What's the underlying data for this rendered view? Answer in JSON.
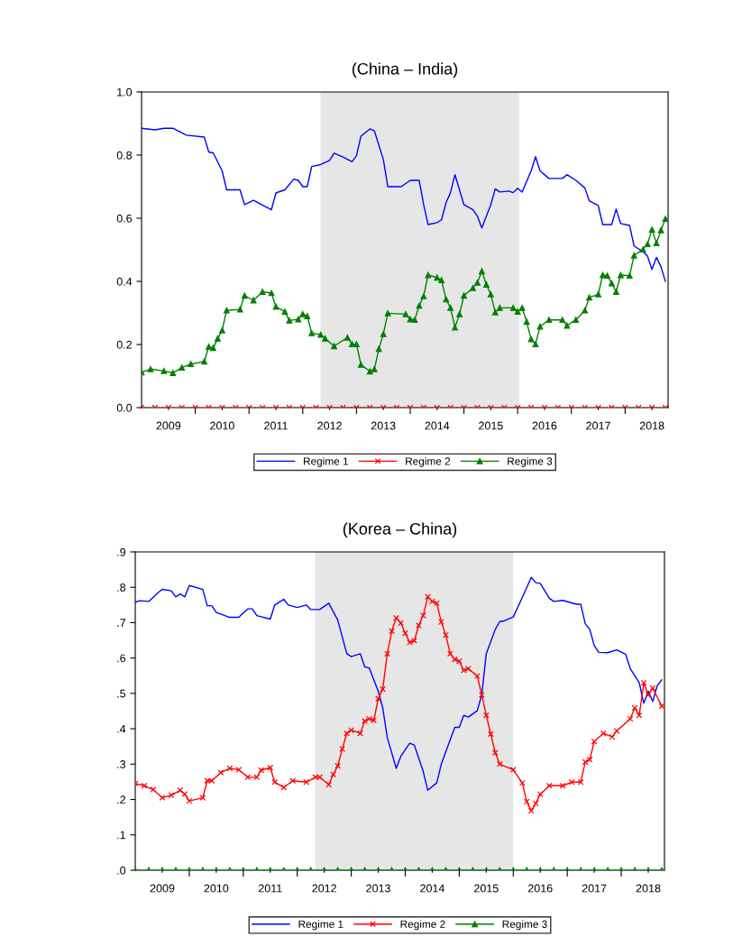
{
  "chart_data": [
    {
      "type": "line",
      "title": "(China – India)",
      "xlim": [
        2009.0,
        2018.8
      ],
      "ylim": [
        0,
        1.0
      ],
      "yticks": [
        {
          "value": 0,
          "label": "0.0"
        },
        {
          "value": 0.2,
          "label": "0.2"
        },
        {
          "value": 0.4,
          "label": "0.4"
        },
        {
          "value": 0.6,
          "label": "0.6"
        },
        {
          "value": 0.8,
          "label": "0.8"
        },
        {
          "value": 1.0,
          "label": "1.0"
        }
      ],
      "xticks": [
        {
          "value": 2009.5,
          "label": "2009"
        },
        {
          "value": 2010,
          "label": null
        },
        {
          "value": 2010.5,
          "label": "2010"
        },
        {
          "value": 2011,
          "label": null
        },
        {
          "value": 2011.5,
          "label": "2011"
        },
        {
          "value": 2012,
          "label": null
        },
        {
          "value": 2012.5,
          "label": "2012"
        },
        {
          "value": 2013,
          "label": null
        },
        {
          "value": 2013.5,
          "label": "2013"
        },
        {
          "value": 2014,
          "label": null
        },
        {
          "value": 2014.5,
          "label": "2014"
        },
        {
          "value": 2015,
          "label": null
        },
        {
          "value": 2015.5,
          "label": "2015"
        },
        {
          "value": 2016,
          "label": null
        },
        {
          "value": 2016.5,
          "label": "2016"
        },
        {
          "value": 2017,
          "label": null
        },
        {
          "value": 2017.5,
          "label": "2017"
        },
        {
          "value": 2018,
          "label": null
        },
        {
          "value": 2018.5,
          "label": "2018"
        }
      ],
      "bands": [
        {
          "axis": "x",
          "from": 2012.33,
          "to": 2016.03,
          "label": null,
          "color": "#e6e6e6"
        }
      ],
      "grid": false,
      "legend": "bottom",
      "series": [
        {
          "name": "Regime 1",
          "color": "#0000ff",
          "marker": "none",
          "line_style": "solid",
          "x": [
            2009.0,
            2009.25,
            2009.417,
            2009.583,
            2009.833,
            2010.167,
            2010.25,
            2010.333,
            2010.5,
            2010.583,
            2010.833,
            2010.917,
            2011.083,
            2011.417,
            2011.5,
            2011.667,
            2011.833,
            2011.917,
            2012.0,
            2012.083,
            2012.167,
            2012.333,
            2012.5,
            2012.583,
            2012.75,
            2012.917,
            2013.0,
            2013.083,
            2013.25,
            2013.333,
            2013.5,
            2013.583,
            2013.833,
            2014.0,
            2014.167,
            2014.25,
            2014.333,
            2014.5,
            2014.583,
            2014.667,
            2014.75,
            2014.833,
            2015.0,
            2015.167,
            2015.25,
            2015.333,
            2015.5,
            2015.583,
            2015.667,
            2015.833,
            2015.917,
            2016.0,
            2016.083,
            2016.25,
            2016.333,
            2016.417,
            2016.583,
            2016.833,
            2016.917,
            2017.083,
            2017.25,
            2017.333,
            2017.5,
            2017.583,
            2017.75,
            2017.833,
            2017.917,
            2018.083,
            2018.167,
            2018.333,
            2018.417,
            2018.5,
            2018.583,
            2018.667,
            2018.75
          ],
          "values": [
            0.885,
            0.88,
            0.885,
            0.885,
            0.863,
            0.857,
            0.81,
            0.807,
            0.75,
            0.69,
            0.69,
            0.643,
            0.657,
            0.627,
            0.68,
            0.69,
            0.724,
            0.72,
            0.7,
            0.7,
            0.764,
            0.77,
            0.783,
            0.806,
            0.794,
            0.779,
            0.798,
            0.86,
            0.883,
            0.877,
            0.786,
            0.7,
            0.7,
            0.72,
            0.72,
            0.643,
            0.58,
            0.586,
            0.595,
            0.649,
            0.681,
            0.738,
            0.643,
            0.627,
            0.607,
            0.569,
            0.643,
            0.693,
            0.683,
            0.686,
            0.681,
            0.695,
            0.683,
            0.75,
            0.795,
            0.75,
            0.726,
            0.726,
            0.738,
            0.72,
            0.696,
            0.655,
            0.64,
            0.58,
            0.58,
            0.629,
            0.583,
            0.577,
            0.512,
            0.494,
            0.48,
            0.438,
            0.476,
            0.446,
            0.4
          ]
        },
        {
          "name": "Regime 2",
          "color": "#ff0000",
          "marker": "cross",
          "line_style": "dotted",
          "x": [
            2009.0,
            2009.25,
            2009.5,
            2009.75,
            2010.0,
            2010.25,
            2010.5,
            2010.75,
            2011.0,
            2011.25,
            2011.5,
            2011.75,
            2012.0,
            2012.25,
            2012.5,
            2012.75,
            2013.0,
            2013.25,
            2013.5,
            2013.75,
            2014.0,
            2014.25,
            2014.5,
            2014.75,
            2015.0,
            2015.25,
            2015.5,
            2015.75,
            2016.0,
            2016.25,
            2016.5,
            2016.75,
            2017.0,
            2017.25,
            2017.5,
            2017.75,
            2018.0,
            2018.25,
            2018.5,
            2018.75
          ],
          "values": [
            0,
            0,
            0,
            0,
            0,
            0,
            0,
            0,
            0,
            0,
            0,
            0,
            0,
            0,
            0,
            0,
            0,
            0,
            0,
            0,
            0,
            0,
            0,
            0,
            0,
            0,
            0,
            0,
            0,
            0,
            0,
            0,
            0,
            0,
            0,
            0,
            0,
            0,
            0,
            0
          ]
        },
        {
          "name": "Regime 3",
          "color": "#008000",
          "marker": "triangle",
          "line_style": "solid",
          "x": [
            2009.0,
            2009.167,
            2009.417,
            2009.583,
            2009.75,
            2009.917,
            2010.167,
            2010.25,
            2010.333,
            2010.417,
            2010.5,
            2010.583,
            2010.833,
            2010.917,
            2011.083,
            2011.25,
            2011.417,
            2011.5,
            2011.667,
            2011.75,
            2011.917,
            2012.0,
            2012.083,
            2012.167,
            2012.333,
            2012.417,
            2012.583,
            2012.833,
            2012.917,
            2013.0,
            2013.083,
            2013.25,
            2013.333,
            2013.417,
            2013.5,
            2013.583,
            2013.917,
            2014.0,
            2014.083,
            2014.167,
            2014.25,
            2014.333,
            2014.5,
            2014.583,
            2014.667,
            2014.75,
            2014.833,
            2014.917,
            2015.0,
            2015.167,
            2015.25,
            2015.333,
            2015.417,
            2015.5,
            2015.583,
            2015.667,
            2015.917,
            2016.0,
            2016.083,
            2016.167,
            2016.25,
            2016.333,
            2016.417,
            2016.583,
            2016.833,
            2016.917,
            2017.083,
            2017.25,
            2017.333,
            2017.5,
            2017.583,
            2017.667,
            2017.75,
            2017.833,
            2017.917,
            2018.083,
            2018.167,
            2018.333,
            2018.417,
            2018.5,
            2018.583,
            2018.667,
            2018.75
          ],
          "values": [
            0.112,
            0.122,
            0.116,
            0.11,
            0.127,
            0.138,
            0.146,
            0.193,
            0.189,
            0.219,
            0.245,
            0.308,
            0.311,
            0.355,
            0.34,
            0.367,
            0.363,
            0.32,
            0.304,
            0.276,
            0.28,
            0.296,
            0.29,
            0.236,
            0.231,
            0.219,
            0.195,
            0.222,
            0.201,
            0.201,
            0.136,
            0.115,
            0.122,
            0.186,
            0.233,
            0.299,
            0.296,
            0.28,
            0.278,
            0.323,
            0.353,
            0.42,
            0.412,
            0.404,
            0.343,
            0.316,
            0.254,
            0.296,
            0.355,
            0.379,
            0.396,
            0.432,
            0.39,
            0.359,
            0.302,
            0.316,
            0.316,
            0.304,
            0.316,
            0.272,
            0.217,
            0.201,
            0.257,
            0.278,
            0.278,
            0.26,
            0.278,
            0.308,
            0.349,
            0.359,
            0.42,
            0.418,
            0.394,
            0.367,
            0.42,
            0.418,
            0.482,
            0.501,
            0.518,
            0.564,
            0.521,
            0.562,
            0.598
          ]
        }
      ]
    },
    {
      "type": "line",
      "title": "(Korea – China)",
      "xlim": [
        2009.0,
        2018.8
      ],
      "ylim": [
        0,
        0.9
      ],
      "yticks": [
        {
          "value": 0,
          "label": ".0"
        },
        {
          "value": 0.1,
          "label": ".1"
        },
        {
          "value": 0.2,
          "label": ".2"
        },
        {
          "value": 0.3,
          "label": ".3"
        },
        {
          "value": 0.4,
          "label": ".4"
        },
        {
          "value": 0.5,
          "label": ".5"
        },
        {
          "value": 0.6,
          "label": ".6"
        },
        {
          "value": 0.7,
          "label": ".7"
        },
        {
          "value": 0.8,
          "label": ".8"
        },
        {
          "value": 0.9,
          "label": ".9"
        }
      ],
      "xticks": [
        {
          "value": 2009.5,
          "label": "2009"
        },
        {
          "value": 2010,
          "label": null
        },
        {
          "value": 2010.5,
          "label": "2010"
        },
        {
          "value": 2011,
          "label": null
        },
        {
          "value": 2011.5,
          "label": "2011"
        },
        {
          "value": 2012,
          "label": null
        },
        {
          "value": 2012.5,
          "label": "2012"
        },
        {
          "value": 2013,
          "label": null
        },
        {
          "value": 2013.5,
          "label": "2013"
        },
        {
          "value": 2014,
          "label": null
        },
        {
          "value": 2014.5,
          "label": "2014"
        },
        {
          "value": 2015,
          "label": null
        },
        {
          "value": 2015.5,
          "label": "2015"
        },
        {
          "value": 2016,
          "label": null
        },
        {
          "value": 2016.5,
          "label": "2016"
        },
        {
          "value": 2017,
          "label": null
        },
        {
          "value": 2017.5,
          "label": "2017"
        },
        {
          "value": 2018,
          "label": null
        },
        {
          "value": 2018.5,
          "label": "2018"
        }
      ],
      "bands": [
        {
          "axis": "x",
          "from": 2012.33,
          "to": 2016.0,
          "label": null,
          "color": "#e6e6e6"
        }
      ],
      "grid": false,
      "legend": "bottom",
      "series": [
        {
          "name": "Regime 1",
          "color": "#0000ff",
          "marker": "none",
          "line_style": "solid",
          "x": [
            2009.0,
            2009.083,
            2009.25,
            2009.417,
            2009.5,
            2009.667,
            2009.75,
            2009.833,
            2009.917,
            2010.0,
            2010.25,
            2010.333,
            2010.417,
            2010.5,
            2010.75,
            2010.917,
            2011.083,
            2011.167,
            2011.25,
            2011.5,
            2011.583,
            2011.75,
            2011.833,
            2012.0,
            2012.167,
            2012.25,
            2012.417,
            2012.583,
            2012.75,
            2012.917,
            2013.0,
            2013.167,
            2013.25,
            2013.333,
            2013.5,
            2013.583,
            2013.667,
            2013.833,
            2013.917,
            2014.083,
            2014.167,
            2014.333,
            2014.417,
            2014.583,
            2014.667,
            2014.917,
            2015.0,
            2015.083,
            2015.167,
            2015.333,
            2015.417,
            2015.5,
            2015.667,
            2015.75,
            2015.833,
            2016.0,
            2016.167,
            2016.333,
            2016.417,
            2016.5,
            2016.667,
            2016.75,
            2016.917,
            2017.167,
            2017.25,
            2017.333,
            2017.417,
            2017.5,
            2017.583,
            2017.75,
            2017.917,
            2018.083,
            2018.167,
            2018.333,
            2018.417,
            2018.5,
            2018.583,
            2018.667,
            2018.75
          ],
          "values": [
            0.758,
            0.762,
            0.76,
            0.784,
            0.794,
            0.79,
            0.773,
            0.781,
            0.773,
            0.805,
            0.794,
            0.748,
            0.748,
            0.729,
            0.715,
            0.715,
            0.739,
            0.739,
            0.72,
            0.71,
            0.75,
            0.766,
            0.75,
            0.743,
            0.75,
            0.737,
            0.737,
            0.755,
            0.707,
            0.612,
            0.604,
            0.612,
            0.575,
            0.572,
            0.506,
            0.459,
            0.375,
            0.288,
            0.322,
            0.359,
            0.354,
            0.279,
            0.226,
            0.247,
            0.3,
            0.404,
            0.404,
            0.438,
            0.433,
            0.451,
            0.496,
            0.612,
            0.681,
            0.703,
            0.705,
            0.716,
            0.771,
            0.828,
            0.813,
            0.811,
            0.769,
            0.76,
            0.763,
            0.752,
            0.752,
            0.697,
            0.681,
            0.635,
            0.616,
            0.615,
            0.623,
            0.61,
            0.57,
            0.53,
            0.472,
            0.506,
            0.477,
            0.522,
            0.538
          ]
        },
        {
          "name": "Regime 2",
          "color": "#ff0000",
          "marker": "cross",
          "line_style": "solid",
          "x": [
            2009.0,
            2009.167,
            2009.333,
            2009.5,
            2009.667,
            2009.833,
            2009.917,
            2010.0,
            2010.25,
            2010.333,
            2010.417,
            2010.583,
            2010.75,
            2010.917,
            2011.083,
            2011.25,
            2011.333,
            2011.5,
            2011.583,
            2011.75,
            2011.917,
            2012.167,
            2012.333,
            2012.417,
            2012.583,
            2012.667,
            2012.75,
            2012.833,
            2012.917,
            2013.0,
            2013.167,
            2013.25,
            2013.333,
            2013.417,
            2013.5,
            2013.583,
            2013.667,
            2013.75,
            2013.833,
            2013.917,
            2014.0,
            2014.083,
            2014.167,
            2014.25,
            2014.333,
            2014.417,
            2014.5,
            2014.583,
            2014.667,
            2014.75,
            2014.833,
            2014.917,
            2015.0,
            2015.083,
            2015.167,
            2015.333,
            2015.417,
            2015.5,
            2015.583,
            2015.667,
            2015.75,
            2016.0,
            2016.167,
            2016.25,
            2016.333,
            2016.417,
            2016.5,
            2016.667,
            2016.917,
            2017.083,
            2017.25,
            2017.333,
            2017.417,
            2017.5,
            2017.667,
            2017.833,
            2017.917,
            2018.167,
            2018.25,
            2018.333,
            2018.417,
            2018.5,
            2018.583,
            2018.75
          ],
          "values": [
            0.245,
            0.239,
            0.228,
            0.205,
            0.212,
            0.226,
            0.215,
            0.196,
            0.205,
            0.253,
            0.253,
            0.276,
            0.288,
            0.284,
            0.263,
            0.263,
            0.283,
            0.29,
            0.249,
            0.234,
            0.253,
            0.249,
            0.263,
            0.263,
            0.242,
            0.271,
            0.295,
            0.343,
            0.387,
            0.396,
            0.387,
            0.422,
            0.428,
            0.424,
            0.485,
            0.512,
            0.612,
            0.676,
            0.713,
            0.699,
            0.67,
            0.644,
            0.649,
            0.692,
            0.72,
            0.773,
            0.76,
            0.755,
            0.702,
            0.665,
            0.612,
            0.596,
            0.591,
            0.565,
            0.57,
            0.549,
            0.496,
            0.438,
            0.385,
            0.332,
            0.3,
            0.284,
            0.247,
            0.194,
            0.168,
            0.189,
            0.215,
            0.239,
            0.239,
            0.249,
            0.249,
            0.306,
            0.313,
            0.364,
            0.387,
            0.377,
            0.394,
            0.428,
            0.459,
            0.438,
            0.53,
            0.496,
            0.515,
            0.464
          ]
        },
        {
          "name": "Regime 3",
          "color": "#008000",
          "marker": "triangle",
          "line_style": "solid",
          "x": [
            2009.0,
            2009.25,
            2009.5,
            2009.75,
            2010.0,
            2010.25,
            2010.5,
            2010.75,
            2011.0,
            2011.25,
            2011.5,
            2011.75,
            2012.0,
            2012.25,
            2012.5,
            2012.75,
            2013.0,
            2013.25,
            2013.5,
            2013.75,
            2014.0,
            2014.25,
            2014.5,
            2014.75,
            2015.0,
            2015.25,
            2015.5,
            2015.75,
            2016.0,
            2016.25,
            2016.5,
            2016.75,
            2017.0,
            2017.25,
            2017.5,
            2017.75,
            2018.0,
            2018.25,
            2018.5,
            2018.75
          ],
          "values": [
            0,
            0,
            0,
            0,
            0,
            0,
            0,
            0,
            0,
            0,
            0,
            0,
            0,
            0,
            0,
            0,
            0,
            0,
            0,
            0,
            0,
            0,
            0,
            0,
            0,
            0,
            0,
            0,
            0,
            0,
            0,
            0,
            0,
            0,
            0,
            0,
            0,
            0,
            0,
            0
          ]
        }
      ]
    }
  ]
}
